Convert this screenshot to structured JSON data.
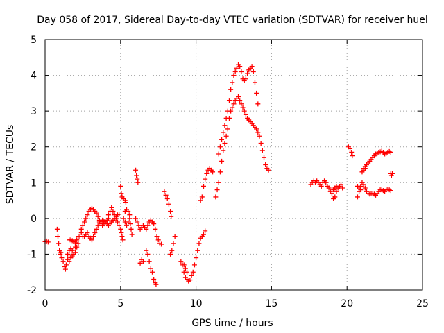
{
  "chart_data": {
    "type": "scatter",
    "title": "Day 058 of 2017, Sidereal Day-to-day VTEC variation (SDTVAR) for receiver huel",
    "xlabel": "GPS time / hours",
    "ylabel": "SDTVAR / TECUs",
    "xlim": [
      0,
      25
    ],
    "ylim": [
      -2,
      5
    ],
    "xticks": [
      0,
      5,
      10,
      15,
      20,
      25
    ],
    "yticks": [
      -2,
      -1,
      0,
      1,
      2,
      3,
      4,
      5
    ],
    "grid": true,
    "marker": "+",
    "marker_color": "#ff0000",
    "series": [
      {
        "name": "SDTVAR",
        "points": [
          [
            0.0,
            -0.65
          ],
          [
            0.1,
            -0.63
          ],
          [
            0.2,
            -0.66
          ],
          [
            0.8,
            -0.3
          ],
          [
            0.85,
            -0.5
          ],
          [
            0.9,
            -0.7
          ],
          [
            0.95,
            -0.9
          ],
          [
            1.0,
            -1.0
          ],
          [
            1.05,
            -0.95
          ],
          [
            1.1,
            -1.1
          ],
          [
            1.2,
            -1.2
          ],
          [
            1.3,
            -1.35
          ],
          [
            1.35,
            -1.42
          ],
          [
            1.4,
            -1.3
          ],
          [
            1.5,
            -1.15
          ],
          [
            1.6,
            -1.2
          ],
          [
            1.7,
            -1.1
          ],
          [
            1.8,
            -1.05
          ],
          [
            1.9,
            -1.0
          ],
          [
            2.0,
            -0.8
          ],
          [
            2.1,
            -0.6
          ],
          [
            2.2,
            -0.5
          ],
          [
            1.6,
            -0.6
          ],
          [
            1.7,
            -0.6
          ],
          [
            1.8,
            -0.62
          ],
          [
            1.9,
            -0.65
          ],
          [
            2.0,
            -0.68
          ],
          [
            1.5,
            -1.0
          ],
          [
            1.6,
            -0.9
          ],
          [
            1.7,
            -0.85
          ],
          [
            1.8,
            -0.9
          ],
          [
            1.9,
            -1.0
          ],
          [
            2.0,
            -0.95
          ],
          [
            2.1,
            -0.8
          ],
          [
            2.2,
            -0.7
          ],
          [
            2.3,
            -0.5
          ],
          [
            2.4,
            -0.3
          ],
          [
            2.5,
            -0.2
          ],
          [
            2.6,
            -0.1
          ],
          [
            2.7,
            0.0
          ],
          [
            2.8,
            0.1
          ],
          [
            2.9,
            0.2
          ],
          [
            3.0,
            0.25
          ],
          [
            3.1,
            0.28
          ],
          [
            3.2,
            0.25
          ],
          [
            3.3,
            0.2
          ],
          [
            3.4,
            0.15
          ],
          [
            3.5,
            0.05
          ],
          [
            3.6,
            -0.05
          ],
          [
            3.7,
            -0.15
          ],
          [
            3.8,
            -0.2
          ],
          [
            3.9,
            -0.15
          ],
          [
            4.0,
            -0.1
          ],
          [
            4.1,
            -0.05
          ],
          [
            4.2,
            0.0
          ],
          [
            2.4,
            -0.4
          ],
          [
            2.5,
            -0.5
          ],
          [
            2.6,
            -0.5
          ],
          [
            2.7,
            -0.45
          ],
          [
            2.8,
            -0.4
          ],
          [
            2.9,
            -0.5
          ],
          [
            3.0,
            -0.55
          ],
          [
            3.1,
            -0.6
          ],
          [
            3.2,
            -0.5
          ],
          [
            3.3,
            -0.4
          ],
          [
            3.4,
            -0.3
          ],
          [
            3.5,
            -0.2
          ],
          [
            3.6,
            -0.1
          ],
          [
            3.7,
            -0.08
          ],
          [
            3.8,
            -0.05
          ],
          [
            3.9,
            -0.08
          ],
          [
            4.0,
            -0.1
          ],
          [
            4.1,
            -0.15
          ],
          [
            4.2,
            -0.2
          ],
          [
            4.3,
            -0.15
          ],
          [
            4.4,
            -0.1
          ],
          [
            4.5,
            -0.05
          ],
          [
            4.6,
            0.0
          ],
          [
            4.7,
            0.05
          ],
          [
            4.8,
            0.1
          ],
          [
            4.9,
            0.12
          ],
          [
            4.2,
            0.1
          ],
          [
            4.3,
            0.2
          ],
          [
            4.4,
            0.3
          ],
          [
            4.5,
            0.2
          ],
          [
            4.6,
            0.1
          ],
          [
            4.7,
            0.0
          ],
          [
            4.8,
            -0.1
          ],
          [
            4.9,
            -0.2
          ],
          [
            5.0,
            -0.3
          ],
          [
            5.05,
            -0.4
          ],
          [
            5.1,
            -0.5
          ],
          [
            5.15,
            -0.6
          ],
          [
            5.0,
            0.9
          ],
          [
            5.05,
            0.7
          ],
          [
            5.1,
            0.6
          ],
          [
            5.2,
            0.55
          ],
          [
            5.3,
            0.5
          ],
          [
            5.35,
            0.45
          ],
          [
            5.2,
            0.0
          ],
          [
            5.3,
            -0.1
          ],
          [
            5.4,
            -0.2
          ],
          [
            5.5,
            -0.1
          ],
          [
            5.6,
            0.0
          ],
          [
            5.65,
            -0.15
          ],
          [
            5.7,
            -0.3
          ],
          [
            5.75,
            -0.45
          ],
          [
            5.3,
            0.2
          ],
          [
            5.4,
            0.25
          ],
          [
            5.5,
            0.2
          ],
          [
            5.6,
            0.1
          ],
          [
            6.0,
            1.35
          ],
          [
            6.05,
            1.2
          ],
          [
            6.1,
            1.1
          ],
          [
            6.15,
            1.0
          ],
          [
            6.0,
            0.0
          ],
          [
            6.1,
            -0.1
          ],
          [
            6.2,
            -0.2
          ],
          [
            6.3,
            -0.3
          ],
          [
            6.4,
            -0.25
          ],
          [
            6.5,
            -0.2
          ],
          [
            6.6,
            -0.25
          ],
          [
            6.7,
            -0.3
          ],
          [
            6.8,
            -0.2
          ],
          [
            6.9,
            -0.1
          ],
          [
            7.0,
            -0.05
          ],
          [
            7.1,
            -0.1
          ],
          [
            7.2,
            -0.15
          ],
          [
            7.3,
            -0.3
          ],
          [
            7.4,
            -0.5
          ],
          [
            7.5,
            -0.6
          ],
          [
            7.6,
            -0.7
          ],
          [
            7.7,
            -0.72
          ],
          [
            6.3,
            -1.25
          ],
          [
            6.4,
            -1.15
          ],
          [
            6.5,
            -1.2
          ],
          [
            6.7,
            -0.9
          ],
          [
            6.8,
            -1.0
          ],
          [
            6.9,
            -1.2
          ],
          [
            7.0,
            -1.4
          ],
          [
            7.1,
            -1.5
          ],
          [
            7.2,
            -1.7
          ],
          [
            7.3,
            -1.8
          ],
          [
            7.35,
            -1.85
          ],
          [
            7.9,
            0.75
          ],
          [
            8.0,
            0.65
          ],
          [
            8.1,
            0.55
          ],
          [
            8.2,
            0.4
          ],
          [
            8.3,
            0.2
          ],
          [
            8.35,
            0.05
          ],
          [
            8.3,
            -1.0
          ],
          [
            8.4,
            -0.9
          ],
          [
            8.5,
            -0.7
          ],
          [
            8.6,
            -0.5
          ],
          [
            9.0,
            -1.2
          ],
          [
            9.1,
            -1.3
          ],
          [
            9.2,
            -1.5
          ],
          [
            9.3,
            -1.65
          ],
          [
            9.4,
            -1.7
          ],
          [
            9.5,
            -1.75
          ],
          [
            9.6,
            -1.72
          ],
          [
            9.7,
            -1.6
          ],
          [
            9.8,
            -1.5
          ],
          [
            9.9,
            -1.3
          ],
          [
            10.0,
            -1.1
          ],
          [
            10.1,
            -0.9
          ],
          [
            10.2,
            -0.7
          ],
          [
            10.3,
            -0.55
          ],
          [
            10.4,
            -0.5
          ],
          [
            10.5,
            -0.45
          ],
          [
            10.6,
            -0.35
          ],
          [
            9.2,
            -1.3
          ],
          [
            9.3,
            -1.4
          ],
          [
            9.4,
            -1.5
          ],
          [
            10.3,
            0.5
          ],
          [
            10.4,
            0.6
          ],
          [
            10.5,
            0.9
          ],
          [
            10.6,
            1.1
          ],
          [
            10.7,
            1.25
          ],
          [
            10.8,
            1.35
          ],
          [
            10.9,
            1.4
          ],
          [
            11.0,
            1.35
          ],
          [
            11.1,
            1.3
          ],
          [
            11.3,
            0.6
          ],
          [
            11.4,
            0.8
          ],
          [
            11.5,
            1.0
          ],
          [
            11.6,
            1.3
          ],
          [
            11.7,
            1.6
          ],
          [
            11.8,
            1.9
          ],
          [
            11.9,
            2.1
          ],
          [
            12.0,
            2.3
          ],
          [
            12.1,
            2.5
          ],
          [
            12.2,
            2.8
          ],
          [
            12.3,
            3.0
          ],
          [
            12.4,
            3.1
          ],
          [
            12.5,
            3.2
          ],
          [
            12.6,
            3.3
          ],
          [
            12.7,
            3.35
          ],
          [
            12.8,
            3.4
          ],
          [
            12.9,
            3.3
          ],
          [
            13.0,
            3.2
          ],
          [
            13.1,
            3.1
          ],
          [
            13.2,
            3.0
          ],
          [
            13.3,
            2.9
          ],
          [
            13.4,
            2.8
          ],
          [
            13.5,
            2.75
          ],
          [
            13.6,
            2.7
          ],
          [
            13.7,
            2.65
          ],
          [
            13.8,
            2.6
          ],
          [
            13.9,
            2.55
          ],
          [
            14.0,
            2.5
          ],
          [
            14.1,
            2.4
          ],
          [
            14.2,
            2.3
          ],
          [
            14.3,
            2.1
          ],
          [
            14.4,
            1.9
          ],
          [
            14.5,
            1.7
          ],
          [
            14.6,
            1.5
          ],
          [
            14.7,
            1.4
          ],
          [
            14.8,
            1.35
          ],
          [
            11.5,
            1.8
          ],
          [
            11.6,
            2.0
          ],
          [
            11.7,
            2.2
          ],
          [
            11.8,
            2.4
          ],
          [
            11.9,
            2.6
          ],
          [
            12.0,
            2.8
          ],
          [
            12.1,
            3.0
          ],
          [
            12.2,
            3.3
          ],
          [
            12.3,
            3.6
          ],
          [
            12.4,
            3.8
          ],
          [
            12.5,
            4.0
          ],
          [
            12.6,
            4.1
          ],
          [
            12.7,
            4.2
          ],
          [
            12.8,
            4.3
          ],
          [
            12.9,
            4.25
          ],
          [
            13.0,
            4.1
          ],
          [
            13.1,
            3.9
          ],
          [
            13.2,
            3.85
          ],
          [
            13.3,
            3.9
          ],
          [
            13.4,
            4.05
          ],
          [
            13.5,
            4.15
          ],
          [
            13.6,
            4.2
          ],
          [
            13.7,
            4.25
          ],
          [
            13.8,
            4.1
          ],
          [
            13.9,
            3.8
          ],
          [
            14.0,
            3.5
          ],
          [
            14.1,
            3.2
          ],
          [
            17.6,
            0.95
          ],
          [
            17.7,
            1.0
          ],
          [
            17.8,
            1.05
          ],
          [
            17.9,
            1.0
          ],
          [
            18.0,
            1.05
          ],
          [
            18.1,
            1.0
          ],
          [
            18.2,
            0.95
          ],
          [
            18.3,
            0.9
          ],
          [
            18.4,
            1.0
          ],
          [
            18.5,
            1.05
          ],
          [
            18.6,
            1.0
          ],
          [
            18.7,
            0.9
          ],
          [
            18.8,
            0.85
          ],
          [
            18.9,
            0.75
          ],
          [
            19.0,
            0.7
          ],
          [
            19.1,
            0.55
          ],
          [
            19.2,
            0.6
          ],
          [
            19.3,
            0.75
          ],
          [
            19.4,
            0.85
          ],
          [
            19.5,
            0.9
          ],
          [
            19.6,
            0.95
          ],
          [
            19.7,
            0.85
          ],
          [
            19.1,
            0.8
          ],
          [
            19.2,
            0.85
          ],
          [
            19.3,
            0.9
          ],
          [
            20.1,
            2.0
          ],
          [
            20.2,
            1.95
          ],
          [
            20.3,
            1.85
          ],
          [
            20.35,
            1.75
          ],
          [
            20.7,
            0.6
          ],
          [
            20.8,
            0.75
          ],
          [
            20.9,
            0.9
          ],
          [
            21.0,
            1.0
          ],
          [
            21.1,
            0.95
          ],
          [
            21.2,
            0.85
          ],
          [
            21.3,
            0.75
          ],
          [
            21.4,
            0.7
          ],
          [
            21.5,
            0.68
          ],
          [
            21.6,
            0.7
          ],
          [
            21.7,
            0.7
          ],
          [
            21.8,
            0.68
          ],
          [
            21.9,
            0.65
          ],
          [
            22.0,
            0.7
          ],
          [
            22.1,
            0.75
          ],
          [
            22.2,
            0.8
          ],
          [
            22.3,
            0.8
          ],
          [
            22.4,
            0.78
          ],
          [
            22.5,
            0.75
          ],
          [
            22.6,
            0.8
          ],
          [
            22.7,
            0.82
          ],
          [
            22.8,
            0.8
          ],
          [
            22.9,
            0.78
          ],
          [
            20.7,
            0.9
          ],
          [
            20.8,
            0.85
          ],
          [
            20.9,
            0.8
          ],
          [
            21.1,
            1.4
          ],
          [
            21.2,
            1.45
          ],
          [
            21.3,
            1.5
          ],
          [
            21.4,
            1.55
          ],
          [
            21.5,
            1.6
          ],
          [
            21.6,
            1.65
          ],
          [
            21.7,
            1.7
          ],
          [
            21.8,
            1.75
          ],
          [
            21.9,
            1.8
          ],
          [
            22.0,
            1.82
          ],
          [
            22.1,
            1.85
          ],
          [
            22.2,
            1.86
          ],
          [
            22.3,
            1.88
          ],
          [
            22.4,
            1.85
          ],
          [
            22.5,
            1.8
          ],
          [
            22.6,
            1.82
          ],
          [
            22.7,
            1.85
          ],
          [
            22.8,
            1.87
          ],
          [
            22.9,
            1.85
          ],
          [
            21.0,
            1.3
          ],
          [
            21.1,
            1.35
          ],
          [
            21.2,
            1.4
          ],
          [
            22.9,
            1.25
          ],
          [
            22.95,
            1.2
          ],
          [
            23.0,
            1.25
          ]
        ]
      }
    ]
  }
}
